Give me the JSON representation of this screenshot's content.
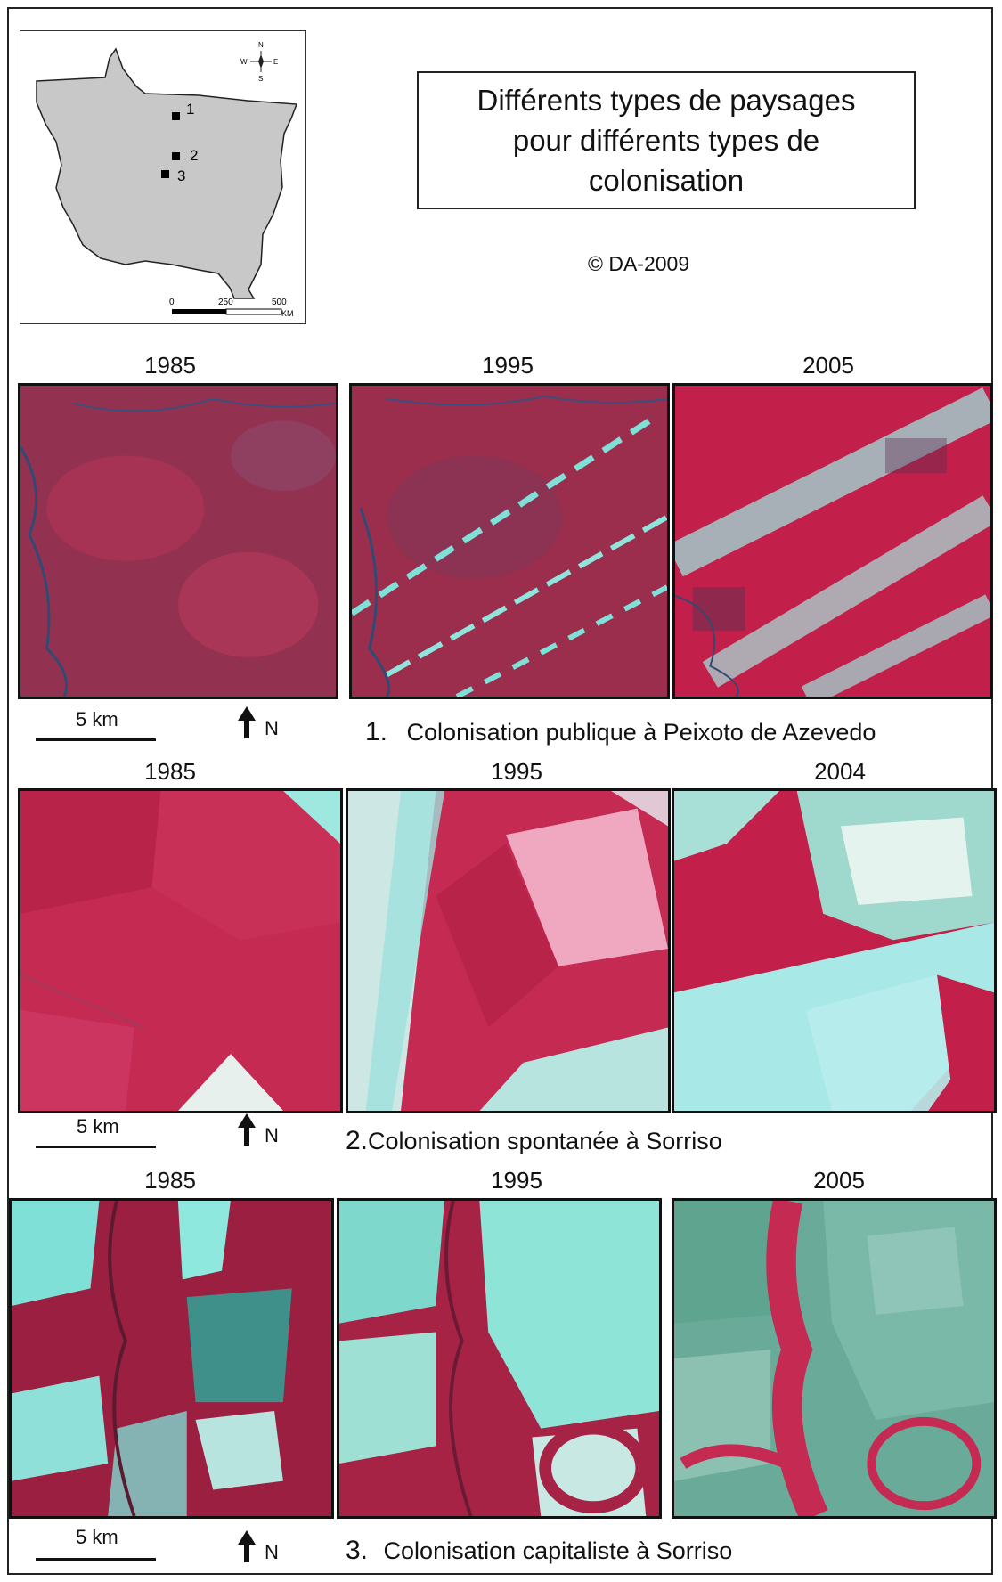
{
  "title": "Différents types de paysages\npour différents types de\ncolonisation",
  "copyright": "© DA-2009",
  "inset_map": {
    "sites": [
      "1",
      "2",
      "3"
    ],
    "compass": {
      "n": "N",
      "s": "S",
      "e": "E",
      "w": "W"
    },
    "scale_ticks": [
      "0",
      "250",
      "500"
    ],
    "scale_unit": "KM"
  },
  "rows": [
    {
      "number": "1.",
      "caption": "Colonisation publique à Peixoto de Azevedo",
      "years": [
        "1985",
        "1995",
        "2005"
      ],
      "scale_label": "5 km",
      "north_label": "N"
    },
    {
      "number": "2.",
      "caption": "Colonisation spontanée à Sorriso",
      "years": [
        "1985",
        "1995",
        "2004"
      ],
      "scale_label": "5 km",
      "north_label": "N"
    },
    {
      "number": "3.",
      "caption": "Colonisation capitaliste à Sorriso",
      "years": [
        "1985",
        "1995",
        "2005"
      ],
      "scale_label": "5 km",
      "north_label": "N"
    }
  ],
  "colors": {
    "forest": "#b8234a",
    "cleared": "#7fe0d8",
    "water": "#2a4a7a",
    "state_fill": "#c8c8c8"
  }
}
